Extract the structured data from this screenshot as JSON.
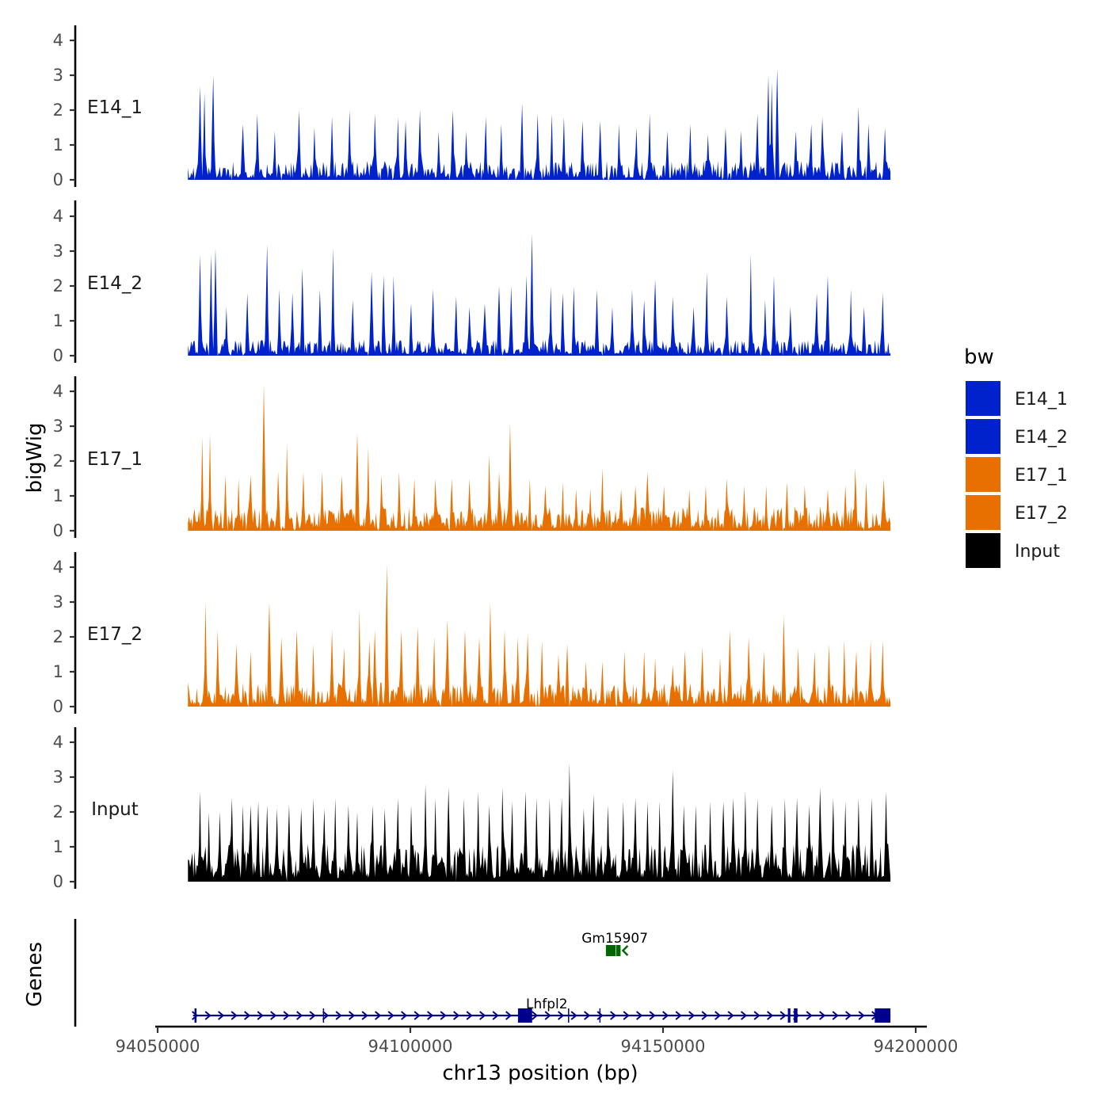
{
  "chart_data": {
    "type": "area",
    "title": "",
    "ylabel": "bigWig",
    "xlabel": "chr13 position (bp)",
    "genes_label": "Genes",
    "ylim": [
      0,
      4.4
    ],
    "yticks": [
      "0",
      "1",
      "2",
      "3",
      "4"
    ],
    "xlim": [
      94050000,
      94200000
    ],
    "xticks": [
      {
        "value": 94050000,
        "label": "94050000"
      },
      {
        "value": 94100000,
        "label": "94100000"
      },
      {
        "value": 94150000,
        "label": "94150000"
      },
      {
        "value": 94200000,
        "label": "94200000"
      }
    ],
    "data_range": [
      94056000,
      94195000
    ],
    "legend": {
      "title": "bw",
      "position": "right",
      "entries": [
        {
          "name": "E14_1",
          "color": "#0022cc"
        },
        {
          "name": "E14_2",
          "color": "#0022cc"
        },
        {
          "name": "E17_1",
          "color": "#e87000"
        },
        {
          "name": "E17_2",
          "color": "#e87000"
        },
        {
          "name": "Input",
          "color": "#000000"
        }
      ]
    },
    "series": [
      {
        "name": "E14_1",
        "color": "#0022cc",
        "base": 0.35,
        "seed": 11,
        "gap": 0.045,
        "peaks": [
          [
            94058500,
            2.7
          ],
          [
            94059200,
            2.5
          ],
          [
            94061000,
            3.0
          ],
          [
            94066800,
            1.6
          ],
          [
            94069800,
            1.9
          ],
          [
            94073100,
            1.4
          ],
          [
            94078000,
            2.0
          ],
          [
            94081100,
            1.5
          ],
          [
            94084600,
            1.8
          ],
          [
            94087900,
            2.0
          ],
          [
            94093000,
            1.9
          ],
          [
            94097500,
            1.8
          ],
          [
            94099000,
            1.7
          ],
          [
            94101900,
            2.0
          ],
          [
            94105600,
            1.4
          ],
          [
            94108400,
            2.0
          ],
          [
            94111000,
            1.4
          ],
          [
            94115000,
            1.8
          ],
          [
            94118000,
            1.6
          ],
          [
            94122200,
            2.2
          ],
          [
            94125200,
            1.9
          ],
          [
            94128000,
            1.9
          ],
          [
            94130400,
            1.8
          ],
          [
            94134000,
            1.7
          ],
          [
            94137500,
            1.7
          ],
          [
            94141200,
            1.6
          ],
          [
            94144700,
            1.5
          ],
          [
            94147400,
            1.9
          ],
          [
            94150900,
            1.4
          ],
          [
            94155400,
            1.6
          ],
          [
            94158900,
            1.3
          ],
          [
            94162400,
            1.5
          ],
          [
            94165500,
            1.4
          ],
          [
            94168600,
            1.9
          ],
          [
            94170800,
            3.0
          ],
          [
            94171600,
            2.8
          ],
          [
            94172500,
            3.2
          ],
          [
            94176300,
            1.4
          ],
          [
            94179400,
            1.6
          ],
          [
            94181600,
            1.8
          ],
          [
            94185500,
            1.4
          ],
          [
            94188700,
            2.1
          ],
          [
            94190700,
            1.6
          ],
          [
            94193900,
            1.5
          ]
        ]
      },
      {
        "name": "E14_2",
        "color": "#0022cc",
        "base": 0.3,
        "seed": 23,
        "gap": 0.035,
        "peaks": [
          [
            94058300,
            2.9
          ],
          [
            94060600,
            2.9
          ],
          [
            94061400,
            3.1
          ],
          [
            94063600,
            1.4
          ],
          [
            94067700,
            1.8
          ],
          [
            94071700,
            3.2
          ],
          [
            94074000,
            1.9
          ],
          [
            94076600,
            1.8
          ],
          [
            94078700,
            2.5
          ],
          [
            94082000,
            1.9
          ],
          [
            94084700,
            3.1
          ],
          [
            94088700,
            1.6
          ],
          [
            94092300,
            2.4
          ],
          [
            94094800,
            2.3
          ],
          [
            94096600,
            2.3
          ],
          [
            94100100,
            1.5
          ],
          [
            94104500,
            1.9
          ],
          [
            94109100,
            1.7
          ],
          [
            94111700,
            1.4
          ],
          [
            94114800,
            1.5
          ],
          [
            94117500,
            2.0
          ],
          [
            94120000,
            2.0
          ],
          [
            94122900,
            2.3
          ],
          [
            94124000,
            3.5
          ],
          [
            94127700,
            2.0
          ],
          [
            94130200,
            1.8
          ],
          [
            94132400,
            2.0
          ],
          [
            94137000,
            1.9
          ],
          [
            94140000,
            1.4
          ],
          [
            94143800,
            1.9
          ],
          [
            94146200,
            1.6
          ],
          [
            94148500,
            2.2
          ],
          [
            94151900,
            1.7
          ],
          [
            94156000,
            1.4
          ],
          [
            94158700,
            2.4
          ],
          [
            94162600,
            1.7
          ],
          [
            94167300,
            2.9
          ],
          [
            94170100,
            1.6
          ],
          [
            94172000,
            2.3
          ],
          [
            94175200,
            1.4
          ],
          [
            94180400,
            1.8
          ],
          [
            94182700,
            2.3
          ],
          [
            94187100,
            1.9
          ],
          [
            94189700,
            1.4
          ],
          [
            94193500,
            1.8
          ]
        ]
      },
      {
        "name": "E17_1",
        "color": "#e87000",
        "base": 0.45,
        "seed": 37,
        "gap": 0.03,
        "peaks": [
          [
            94058900,
            2.7
          ],
          [
            94060300,
            2.8
          ],
          [
            94063500,
            1.6
          ],
          [
            94066000,
            1.5
          ],
          [
            94068500,
            1.6
          ],
          [
            94071000,
            4.2
          ],
          [
            94073800,
            1.7
          ],
          [
            94075500,
            2.5
          ],
          [
            94078900,
            1.7
          ],
          [
            94082500,
            1.7
          ],
          [
            94086400,
            1.6
          ],
          [
            94089500,
            2.8
          ],
          [
            94091600,
            2.4
          ],
          [
            94094300,
            1.6
          ],
          [
            94097800,
            1.7
          ],
          [
            94100800,
            1.5
          ],
          [
            94104900,
            1.5
          ],
          [
            94108300,
            1.5
          ],
          [
            94111700,
            1.5
          ],
          [
            94115600,
            2.2
          ],
          [
            94117600,
            1.7
          ],
          [
            94119800,
            3.1
          ],
          [
            94123600,
            1.5
          ],
          [
            94126700,
            1.3
          ],
          [
            94130100,
            1.4
          ],
          [
            94132700,
            1.2
          ],
          [
            94135700,
            1.2
          ],
          [
            94138100,
            1.8
          ],
          [
            94141600,
            1.2
          ],
          [
            94144600,
            1.3
          ],
          [
            94147000,
            1.7
          ],
          [
            94150200,
            1.3
          ],
          [
            94155200,
            1.2
          ],
          [
            94158500,
            1.3
          ],
          [
            94162600,
            1.5
          ],
          [
            94166000,
            1.3
          ],
          [
            94170500,
            1.3
          ],
          [
            94174500,
            1.4
          ],
          [
            94178000,
            1.3
          ],
          [
            94182500,
            1.2
          ],
          [
            94186000,
            1.3
          ],
          [
            94188000,
            1.8
          ],
          [
            94190300,
            1.4
          ],
          [
            94193600,
            1.5
          ]
        ]
      },
      {
        "name": "E17_2",
        "color": "#e87000",
        "base": 0.45,
        "seed": 53,
        "gap": 0.04,
        "peaks": [
          [
            94059400,
            3.0
          ],
          [
            94061800,
            2.2
          ],
          [
            94065500,
            1.8
          ],
          [
            94068400,
            1.6
          ],
          [
            94072100,
            3.0
          ],
          [
            94074400,
            2.0
          ],
          [
            94077600,
            2.2
          ],
          [
            94080700,
            1.8
          ],
          [
            94084600,
            2.2
          ],
          [
            94086900,
            1.7
          ],
          [
            94090000,
            2.8
          ],
          [
            94091800,
            1.9
          ],
          [
            94093000,
            2.2
          ],
          [
            94095400,
            4.1
          ],
          [
            94098300,
            2.2
          ],
          [
            94101400,
            2.3
          ],
          [
            94104800,
            2.0
          ],
          [
            94107300,
            2.5
          ],
          [
            94110800,
            2.2
          ],
          [
            94113700,
            2.0
          ],
          [
            94115900,
            3.0
          ],
          [
            94118700,
            2.2
          ],
          [
            94121300,
            2.0
          ],
          [
            94123200,
            2.1
          ],
          [
            94126000,
            1.9
          ],
          [
            94129200,
            1.5
          ],
          [
            94131000,
            1.8
          ],
          [
            94134700,
            1.3
          ],
          [
            94138100,
            1.3
          ],
          [
            94142400,
            1.6
          ],
          [
            94146200,
            1.6
          ],
          [
            94148500,
            1.4
          ],
          [
            94151900,
            1.2
          ],
          [
            94154400,
            1.6
          ],
          [
            94157900,
            1.7
          ],
          [
            94161200,
            1.4
          ],
          [
            94163200,
            2.2
          ],
          [
            94167000,
            2.0
          ],
          [
            94170000,
            1.6
          ],
          [
            94174000,
            2.6
          ],
          [
            94176800,
            1.7
          ],
          [
            94180000,
            1.6
          ],
          [
            94182800,
            1.8
          ],
          [
            94185900,
            1.9
          ],
          [
            94188200,
            1.6
          ],
          [
            94191000,
            1.9
          ],
          [
            94193500,
            1.9
          ]
        ]
      },
      {
        "name": "Input",
        "color": "#000000",
        "base": 0.7,
        "seed": 71,
        "gap": 0.01,
        "peaks": [
          [
            94058300,
            2.6
          ],
          [
            94060200,
            2.0
          ],
          [
            94062400,
            2.0
          ],
          [
            94064700,
            2.4
          ],
          [
            94066800,
            2.2
          ],
          [
            94068400,
            2.2
          ],
          [
            94070000,
            2.3
          ],
          [
            94071700,
            2.2
          ],
          [
            94073600,
            2.1
          ],
          [
            94076000,
            2.2
          ],
          [
            94078500,
            2.1
          ],
          [
            94080900,
            2.4
          ],
          [
            94083000,
            2.1
          ],
          [
            94085200,
            2.4
          ],
          [
            94087800,
            2.2
          ],
          [
            94089600,
            2.0
          ],
          [
            94092600,
            2.2
          ],
          [
            94095000,
            2.1
          ],
          [
            94097500,
            2.4
          ],
          [
            94100100,
            2.2
          ],
          [
            94103000,
            2.8
          ],
          [
            94105000,
            2.4
          ],
          [
            94107500,
            2.7
          ],
          [
            94110600,
            2.4
          ],
          [
            94113400,
            2.6
          ],
          [
            94115500,
            2.2
          ],
          [
            94118200,
            2.7
          ],
          [
            94120100,
            2.3
          ],
          [
            94122800,
            2.6
          ],
          [
            94125000,
            2.4
          ],
          [
            94127600,
            2.4
          ],
          [
            94130000,
            2.4
          ],
          [
            94131500,
            3.4
          ],
          [
            94134300,
            2.1
          ],
          [
            94136300,
            2.5
          ],
          [
            94139200,
            2.2
          ],
          [
            94142200,
            2.3
          ],
          [
            94144500,
            2.4
          ],
          [
            94147000,
            2.3
          ],
          [
            94149400,
            2.3
          ],
          [
            94152000,
            3.2
          ],
          [
            94154100,
            2.2
          ],
          [
            94156500,
            2.2
          ],
          [
            94159400,
            2.3
          ],
          [
            94162000,
            2.3
          ],
          [
            94164000,
            2.4
          ],
          [
            94166200,
            2.6
          ],
          [
            94168700,
            2.4
          ],
          [
            94171600,
            2.2
          ],
          [
            94174200,
            2.4
          ],
          [
            94176600,
            2.4
          ],
          [
            94179000,
            2.2
          ],
          [
            94181100,
            2.7
          ],
          [
            94183600,
            2.4
          ],
          [
            94186100,
            2.3
          ],
          [
            94188700,
            2.4
          ],
          [
            94191400,
            2.4
          ],
          [
            94194100,
            2.6
          ]
        ]
      }
    ],
    "genes": [
      {
        "name": "Gm15907",
        "strand": "-",
        "color": "#006600",
        "row": "top",
        "exons": [
          [
            94138700,
            94140600
          ],
          [
            94140700,
            94141600
          ]
        ]
      },
      {
        "name": "Lhfpl2",
        "strand": "+",
        "color": "#00008b",
        "row": "bottom",
        "start": 94057000,
        "end": 94195000,
        "exons": [
          [
            94057300,
            94057700
          ],
          [
            94082700,
            94082900
          ],
          [
            94121300,
            94124100
          ],
          [
            94131200,
            94131300
          ],
          [
            94137400,
            94137600
          ],
          [
            94174700,
            94175200
          ],
          [
            94175900,
            94176600
          ],
          [
            94191900,
            94195000
          ]
        ]
      }
    ]
  }
}
